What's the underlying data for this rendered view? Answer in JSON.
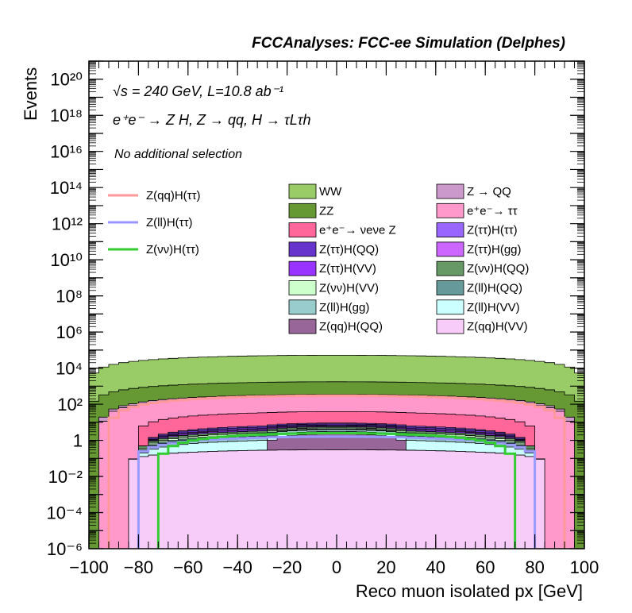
{
  "chart_data": {
    "type": "stacked-histogram",
    "title": "FCCAnalyses: FCC-ee Simulation (Delphes)",
    "annotations": {
      "line1": "√s = 240 GeV, L=10.8 ab⁻¹",
      "line2": "e⁺e⁻ → Z H, Z → qq, H → τLτh",
      "line3": "No additional selection"
    },
    "xlabel": "Reco muon isolated px [GeV]",
    "ylabel": "Events",
    "xlim": [
      -100,
      100
    ],
    "ylim_log10": [
      -6,
      21
    ],
    "yscale": "log",
    "x_ticks": [
      "−100",
      "−80",
      "−60",
      "−40",
      "−20",
      "0",
      "20",
      "40",
      "60",
      "80",
      "100"
    ],
    "y_ticks": [
      "10⁻⁶",
      "10⁻⁴",
      "10⁻²",
      "1",
      "10²",
      "10⁴",
      "10⁶",
      "10⁸",
      "10¹⁰",
      "10¹²",
      "10¹⁴",
      "10¹⁶",
      "10¹⁸",
      "10²⁰"
    ],
    "bins": {
      "n": 50,
      "lo": -100,
      "hi": 100
    },
    "stack_bottom_to_top": [
      {
        "name": "Z(qq)H(VV)",
        "color": "#f8ccf8",
        "peak": 0.3,
        "extent": 86,
        "power": 0.5
      },
      {
        "name": "Z(qq)H(QQ)",
        "color": "#996699",
        "peak": 2.0,
        "extent": 28,
        "power": 0.5
      },
      {
        "name": "Z(ll)H(VV)",
        "color": "#ccffff",
        "peak": 0.8,
        "extent": 80,
        "power": 0.8
      },
      {
        "name": "Z(ll)H(gg)",
        "color": "#99cccc",
        "peak": 0.8,
        "extent": 80,
        "power": 0.8
      },
      {
        "name": "Z(ll)H(QQ)",
        "color": "#669999",
        "peak": 0.4,
        "extent": 80,
        "power": 0.8
      },
      {
        "name": "Z(νν)H(VV)",
        "color": "#ccffcc",
        "peak": 0.6,
        "extent": 80,
        "power": 0.8
      },
      {
        "name": "Z(νν)H(QQ)",
        "color": "#669966",
        "peak": 0.8,
        "extent": 82,
        "power": 0.8
      },
      {
        "name": "Z(ττ)H(VV)",
        "color": "#9933ff",
        "peak": 0.7,
        "extent": 78,
        "power": 0.8
      },
      {
        "name": "Z(ττ)H(gg)",
        "color": "#cc66ff",
        "peak": 0.6,
        "extent": 78,
        "power": 0.8
      },
      {
        "name": "Z(ττ)H(QQ)",
        "color": "#6633cc",
        "peak": 1.1,
        "extent": 78,
        "power": 0.8
      },
      {
        "name": "Z(ττ)H(ττ)",
        "color": "#9966ff",
        "peak": 1.0,
        "extent": 78,
        "power": 0.8
      },
      {
        "name": "e⁺e⁻ → νeνe Z",
        "color": "#ff6699",
        "peak": 30,
        "extent": 82,
        "power": 0.7
      },
      {
        "name": "e⁺e⁻ → ττ",
        "color": "#ff99cc",
        "peak": 250,
        "extent": 95,
        "power": 0.8
      },
      {
        "name": "Z → QQ",
        "color": "#cc99cc",
        "peak": 60,
        "extent": 98,
        "power": 0.8
      },
      {
        "name": "ZZ",
        "color": "#669933",
        "peak": 1400,
        "extent": 100,
        "power": 0.7
      },
      {
        "name": "WW",
        "color": "#99cc66",
        "peak": 50000,
        "extent": 100,
        "power": 0.7
      }
    ],
    "signal_lines": [
      {
        "name": "Z(qq)H(ττ)",
        "color": "#ff9999",
        "peak": 300,
        "extent": 92,
        "power": 0.9
      },
      {
        "name": "Z(ll)H(ττ)",
        "color": "#9999ff",
        "peak": 1.6,
        "extent": 82,
        "power": 0.8
      },
      {
        "name": "Z(νν)H(ττ)",
        "color": "#33cc33",
        "peak": 2.5,
        "extent": 72,
        "power": 0.9
      }
    ]
  },
  "legend": {
    "signals": [
      "Z(qq)H(ττ)",
      "Z(ll)H(ττ)",
      "Z(νν)H(ττ)"
    ],
    "col1": [
      "WW",
      "ZZ",
      "e⁺e⁻→ νeνe Z",
      "Z(ττ)H(QQ)",
      "Z(ττ)H(VV)",
      "Z(νν)H(VV)",
      "Z(ll)H(gg)",
      "Z(qq)H(QQ)"
    ],
    "col2": [
      "Z → QQ",
      "e⁺e⁻→ ττ",
      "Z(ττ)H(ττ)",
      "Z(ττ)H(gg)",
      "Z(νν)H(QQ)",
      "Z(ll)H(QQ)",
      "Z(ll)H(VV)",
      "Z(qq)H(VV)"
    ]
  },
  "colors": {
    "WW": "#99cc66",
    "ZZ": "#669933",
    "e⁺e⁻→ νeνe Z": "#ff6699",
    "Z(ττ)H(QQ)": "#6633cc",
    "Z(ττ)H(VV)": "#9933ff",
    "Z(νν)H(VV)": "#ccffcc",
    "Z(ll)H(gg)": "#99cccc",
    "Z(qq)H(QQ)": "#996699",
    "Z → QQ": "#cc99cc",
    "e⁺e⁻→ ττ": "#ff99cc",
    "Z(ττ)H(ττ)": "#9966ff",
    "Z(ττ)H(gg)": "#cc66ff",
    "Z(νν)H(QQ)": "#669966",
    "Z(ll)H(QQ)": "#669999",
    "Z(ll)H(VV)": "#ccffff",
    "Z(qq)H(VV)": "#f8ccf8",
    "Z(qq)H(ττ)": "#ff9999",
    "Z(ll)H(ττ)": "#9999ff",
    "Z(νν)H(ττ)": "#33cc33"
  }
}
